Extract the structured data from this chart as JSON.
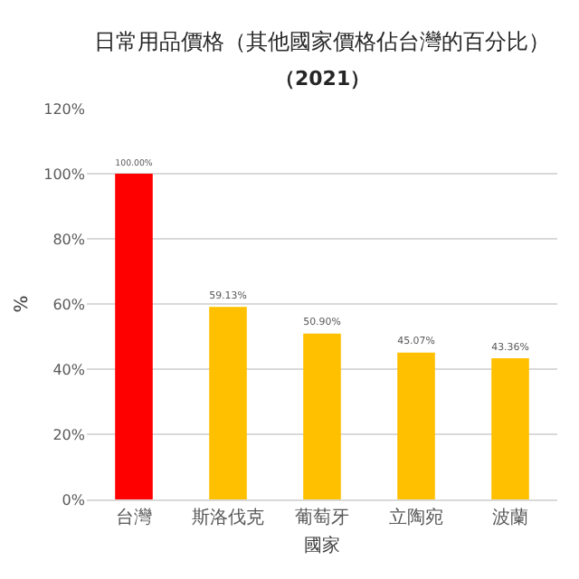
{
  "chart_data": {
    "type": "bar",
    "title": "日常用品價格（其他國家價格佔台灣的百分比）",
    "subtitle": "（2021）",
    "xlabel": "國家",
    "ylabel": "%",
    "categories": [
      "台灣",
      "斯洛伐克",
      "葡萄牙",
      "立陶宛",
      "波蘭"
    ],
    "values": [
      100,
      59.13,
      50.9,
      45.07,
      43.36
    ],
    "colors": [
      "#ff0000",
      "#ffc000",
      "#ffc000",
      "#ffc000",
      "#ffc000"
    ],
    "value_labels": [
      "100.00%",
      "59.13%",
      "50.90%",
      "45.07%",
      "43.36%"
    ],
    "ylim": [
      0,
      120
    ],
    "yticks": [
      {
        "value": 0,
        "label": "0%"
      },
      {
        "value": 20,
        "label": "20%"
      },
      {
        "value": 40,
        "label": "40%"
      },
      {
        "value": 60,
        "label": "60%"
      },
      {
        "value": 80,
        "label": "80%"
      },
      {
        "value": 100,
        "label": "100%"
      },
      {
        "value": 120,
        "label": "120%"
      }
    ],
    "grid": "y"
  }
}
